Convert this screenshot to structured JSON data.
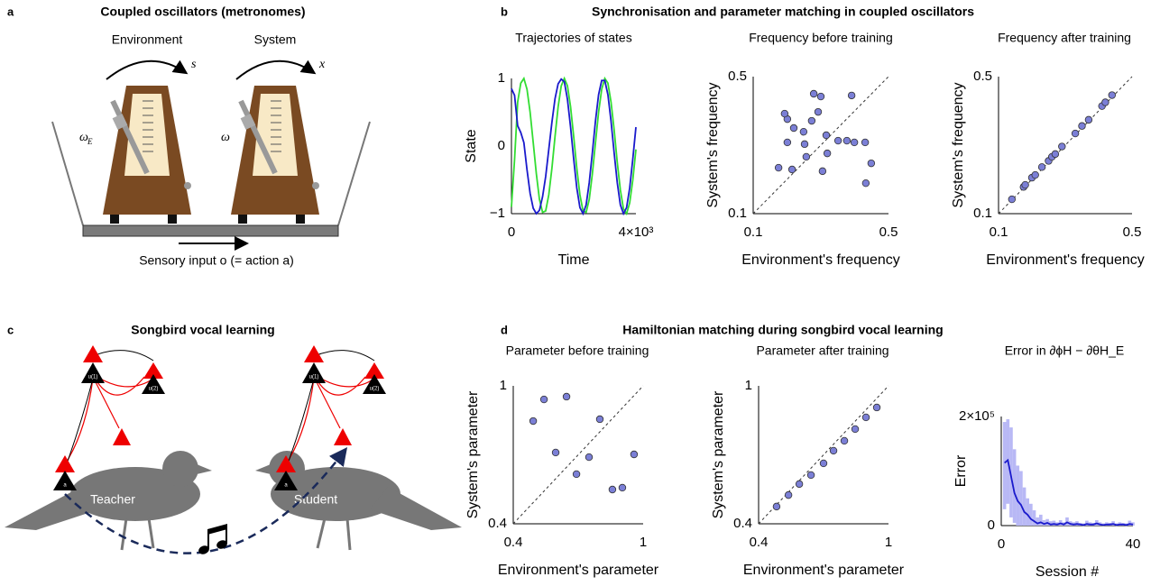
{
  "figure": {
    "labels": [
      "a",
      "b",
      "c",
      "d"
    ],
    "a": {
      "title": "Coupled oscillators (metronomes)",
      "environment": "Environment",
      "system": "System",
      "s": "s",
      "x": "x",
      "omega_env": "ω",
      "omega_env_sub": "E",
      "omega": "ω",
      "input": "Sensory input o (= action a)"
    },
    "b": {
      "title": "Synchronisation and parameter matching in coupled oscillators"
    },
    "c": {
      "title": "Songbird vocal learning",
      "teacher": "Teacher",
      "student": "Student",
      "nodes": [
        "u(1)",
        "u(2)",
        "a"
      ]
    },
    "d": {
      "title": "Hamiltonian matching during songbird vocal learning"
    }
  },
  "chart_data": [
    {
      "type": "line",
      "title": "Trajectories of states",
      "xlabel": "Time",
      "ylabel": "State",
      "x": [
        0,
        100,
        200,
        300,
        400,
        500,
        600,
        700,
        800,
        900,
        1000,
        1100,
        1200,
        1300,
        1400,
        1500,
        1600,
        1700,
        1800,
        1900,
        2000,
        2100,
        2200,
        2300,
        2400,
        2500,
        2600,
        2700,
        2800,
        2900,
        3000,
        3100,
        3200,
        3300,
        3400,
        3500,
        3600,
        3700,
        3800,
        3900,
        4000
      ],
      "series": [
        {
          "color": "#33dd33",
          "values": [
            -0.9,
            -0.2,
            0.65,
            0.93,
            1.0,
            0.84,
            0.5,
            0.05,
            -0.41,
            -0.79,
            -0.98,
            -0.96,
            -0.72,
            -0.33,
            0.14,
            0.58,
            0.89,
            1.0,
            0.89,
            0.58,
            0.14,
            -0.33,
            -0.72,
            -0.96,
            -0.98,
            -0.79,
            -0.41,
            0.05,
            0.5,
            0.84,
            1.0,
            0.93,
            0.65,
            0.24,
            -0.24,
            -0.65,
            -0.93,
            -1.0,
            -0.84,
            -0.5,
            -0.05
          ]
        },
        {
          "color": "#1a1acc",
          "values": [
            0.85,
            0.75,
            0.3,
            0.2,
            0.05,
            -0.35,
            -0.7,
            -0.92,
            -1.0,
            -0.95,
            -0.75,
            -0.45,
            -0.05,
            0.35,
            0.7,
            0.92,
            0.99,
            0.95,
            0.69,
            0.28,
            -0.19,
            -0.62,
            -0.91,
            -1.0,
            -0.87,
            -0.54,
            -0.1,
            0.37,
            0.76,
            0.97,
            0.97,
            0.76,
            0.37,
            -0.1,
            -0.54,
            -0.87,
            -1.0,
            -0.91,
            -0.62,
            -0.19,
            0.28
          ]
        }
      ],
      "xlim": [
        0,
        4000
      ],
      "ylim": [
        -1,
        1
      ],
      "xticks": [
        0,
        {
          "value": 4000,
          "label": "4×10³"
        }
      ],
      "yticks": [
        {
          "value": -1,
          "label": "−1"
        },
        0,
        1
      ]
    },
    {
      "type": "scatter",
      "title": "Frequency before training",
      "xlabel": "Environment's frequency",
      "ylabel": "System's frequency",
      "color": "#7b7fd6",
      "identity_line": true,
      "x": [
        0.175,
        0.201,
        0.201,
        0.193,
        0.215,
        0.22,
        0.249,
        0.252,
        0.257,
        0.273,
        0.279,
        0.292,
        0.3,
        0.316,
        0.305,
        0.319,
        0.351,
        0.377,
        0.391,
        0.399,
        0.431,
        0.433,
        0.449
      ],
      "values": [
        0.234,
        0.308,
        0.376,
        0.392,
        0.229,
        0.35,
        0.339,
        0.303,
        0.266,
        0.371,
        0.45,
        0.397,
        0.442,
        0.329,
        0.224,
        0.276,
        0.313,
        0.313,
        0.445,
        0.308,
        0.308,
        0.189,
        0.247
      ],
      "xlim": [
        0.1,
        0.5
      ],
      "ylim": [
        0.1,
        0.5
      ],
      "xticks": [
        0.1,
        0.5
      ],
      "yticks": [
        0.1,
        0.5
      ]
    },
    {
      "type": "scatter",
      "title": "Frequency after training",
      "xlabel": "Environment's frequency",
      "ylabel": "System's frequency",
      "color": "#7b7fd6",
      "identity_line": true,
      "x": [
        0.14,
        0.175,
        0.18,
        0.2,
        0.21,
        0.23,
        0.25,
        0.26,
        0.27,
        0.29,
        0.33,
        0.35,
        0.37,
        0.41,
        0.42,
        0.44
      ],
      "values": [
        0.142,
        0.178,
        0.184,
        0.205,
        0.213,
        0.236,
        0.254,
        0.266,
        0.274,
        0.296,
        0.334,
        0.356,
        0.374,
        0.414,
        0.425,
        0.446
      ],
      "xlim": [
        0.1,
        0.5
      ],
      "ylim": [
        0.1,
        0.5
      ],
      "xticks": [
        0.1,
        0.5
      ],
      "yticks": [
        0.1,
        0.5
      ]
    },
    {
      "type": "scatter",
      "title": "Parameter before training",
      "xlabel": "Environment's parameter",
      "ylabel": "System's parameter",
      "color": "#7b7fd6",
      "identity_line": true,
      "x": [
        0.492,
        0.542,
        0.646,
        0.596,
        0.8,
        0.692,
        0.75,
        0.858,
        0.904,
        0.958
      ],
      "values": [
        0.847,
        0.941,
        0.953,
        0.71,
        0.855,
        0.616,
        0.69,
        0.549,
        0.557,
        0.702
      ],
      "xlim": [
        0.4,
        1
      ],
      "ylim": [
        0.4,
        1
      ],
      "xticks": [
        0.4,
        1
      ],
      "yticks": [
        0.4,
        1
      ]
    },
    {
      "type": "scatter",
      "title": "Parameter after training",
      "xlabel": "Environment's parameter",
      "ylabel": "System's parameter",
      "color": "#7b7fd6",
      "identity_line": true,
      "x": [
        0.483,
        0.538,
        0.588,
        0.642,
        0.7,
        0.746,
        0.796,
        0.846,
        0.896,
        0.946
      ],
      "values": [
        0.475,
        0.525,
        0.573,
        0.612,
        0.663,
        0.718,
        0.761,
        0.812,
        0.863,
        0.906
      ],
      "xlim": [
        0.4,
        1
      ],
      "ylim": [
        0.4,
        1
      ],
      "xticks": [
        0.4,
        1
      ],
      "yticks": [
        0.4,
        1
      ]
    },
    {
      "type": "line",
      "title": "Error in ∂ϕH − ∂θH_E",
      "xlabel": "Session #",
      "ylabel": "Error",
      "x": [
        1,
        2,
        3,
        4,
        5,
        6,
        7,
        8,
        9,
        10,
        11,
        12,
        13,
        14,
        15,
        16,
        17,
        18,
        19,
        20,
        21,
        22,
        23,
        24,
        25,
        26,
        27,
        28,
        29,
        30,
        31,
        32,
        33,
        34,
        35,
        36,
        37,
        38,
        39,
        40
      ],
      "series": [
        {
          "color": "#1a1acc",
          "values": [
            115000,
            120000,
            90000,
            60000,
            45000,
            38000,
            25000,
            20000,
            12000,
            8000,
            4000,
            6000,
            3000,
            5000,
            2000,
            3000,
            2000,
            4000,
            2000,
            6000,
            3000,
            2000,
            3000,
            2000,
            1000,
            3000,
            2000,
            2000,
            4000,
            2000,
            1000,
            2000,
            2000,
            3000,
            1000,
            2000,
            2000,
            1000,
            3000,
            2000
          ]
        }
      ],
      "band": {
        "color": "#b8b8f5",
        "upper": [
          190000,
          195000,
          180000,
          140000,
          110000,
          100000,
          70000,
          50000,
          40000,
          28000,
          15000,
          20000,
          10000,
          12000,
          8000,
          9000,
          6000,
          10000,
          6000,
          15000,
          8000,
          6000,
          8000,
          5000,
          4000,
          9000,
          6000,
          5000,
          10000,
          6000,
          4000,
          6000,
          5000,
          8000,
          4000,
          6000,
          5000,
          4000,
          9000,
          6000
        ],
        "lower": [
          30000,
          40000,
          15000,
          5000,
          0,
          0,
          0,
          0,
          0,
          0,
          0,
          0,
          0,
          0,
          0,
          0,
          0,
          0,
          0,
          0,
          0,
          0,
          0,
          0,
          0,
          0,
          0,
          0,
          0,
          0,
          0,
          0,
          0,
          0,
          0,
          0,
          0,
          0,
          0,
          0
        ]
      },
      "xlim": [
        0,
        40
      ],
      "ylim": [
        0,
        200000
      ],
      "xticks": [
        0,
        40
      ],
      "yticks": [
        0,
        {
          "value": 200000,
          "label": "2×10⁵"
        }
      ]
    }
  ]
}
